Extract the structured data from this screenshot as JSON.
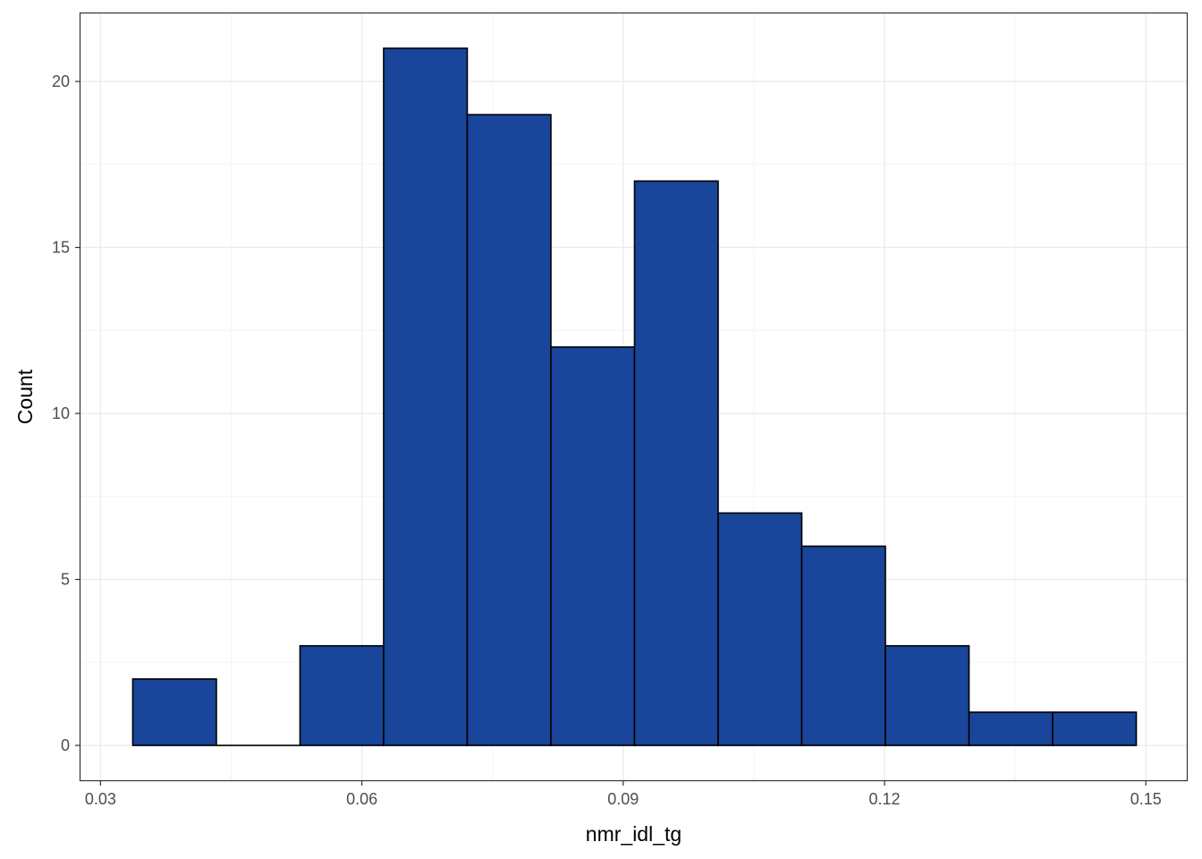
{
  "chart_data": {
    "type": "bar",
    "title": "",
    "xlabel": "nmr_idl_tg",
    "ylabel": "Count",
    "xlim": [
      0.0277,
      0.1547
    ],
    "ylim": [
      -1.05,
      22.05
    ],
    "grid": true,
    "x_ticks": [
      0.03,
      0.06,
      0.09,
      0.12,
      0.15
    ],
    "x_tick_labels": [
      "0.03",
      "0.06",
      "0.09",
      "0.12",
      "0.15"
    ],
    "y_ticks": [
      0,
      5,
      10,
      15,
      20
    ],
    "y_tick_labels": [
      "0",
      "5",
      "10",
      "15",
      "20"
    ],
    "bins": [
      {
        "x0": 0.0337,
        "x1": 0.0433,
        "count": 2
      },
      {
        "x0": 0.0433,
        "x1": 0.0529,
        "count": 0
      },
      {
        "x0": 0.0529,
        "x1": 0.0625,
        "count": 3
      },
      {
        "x0": 0.0625,
        "x1": 0.0721,
        "count": 21
      },
      {
        "x0": 0.0721,
        "x1": 0.0817,
        "count": 19
      },
      {
        "x0": 0.0817,
        "x1": 0.0913,
        "count": 12
      },
      {
        "x0": 0.0913,
        "x1": 0.1009,
        "count": 17
      },
      {
        "x0": 0.1009,
        "x1": 0.1105,
        "count": 7
      },
      {
        "x0": 0.1105,
        "x1": 0.1201,
        "count": 6
      },
      {
        "x0": 0.1201,
        "x1": 0.1297,
        "count": 3
      },
      {
        "x0": 0.1297,
        "x1": 0.1393,
        "count": 1
      },
      {
        "x0": 0.1393,
        "x1": 0.1489,
        "count": 1
      }
    ],
    "colors": {
      "bar_fill": "#19459A",
      "bar_stroke": "#000000",
      "grid_major": "#EBEBEB",
      "grid_minor": "#F4F4F4",
      "panel_border": "#333333",
      "tick_text": "#4D4D4D"
    }
  }
}
